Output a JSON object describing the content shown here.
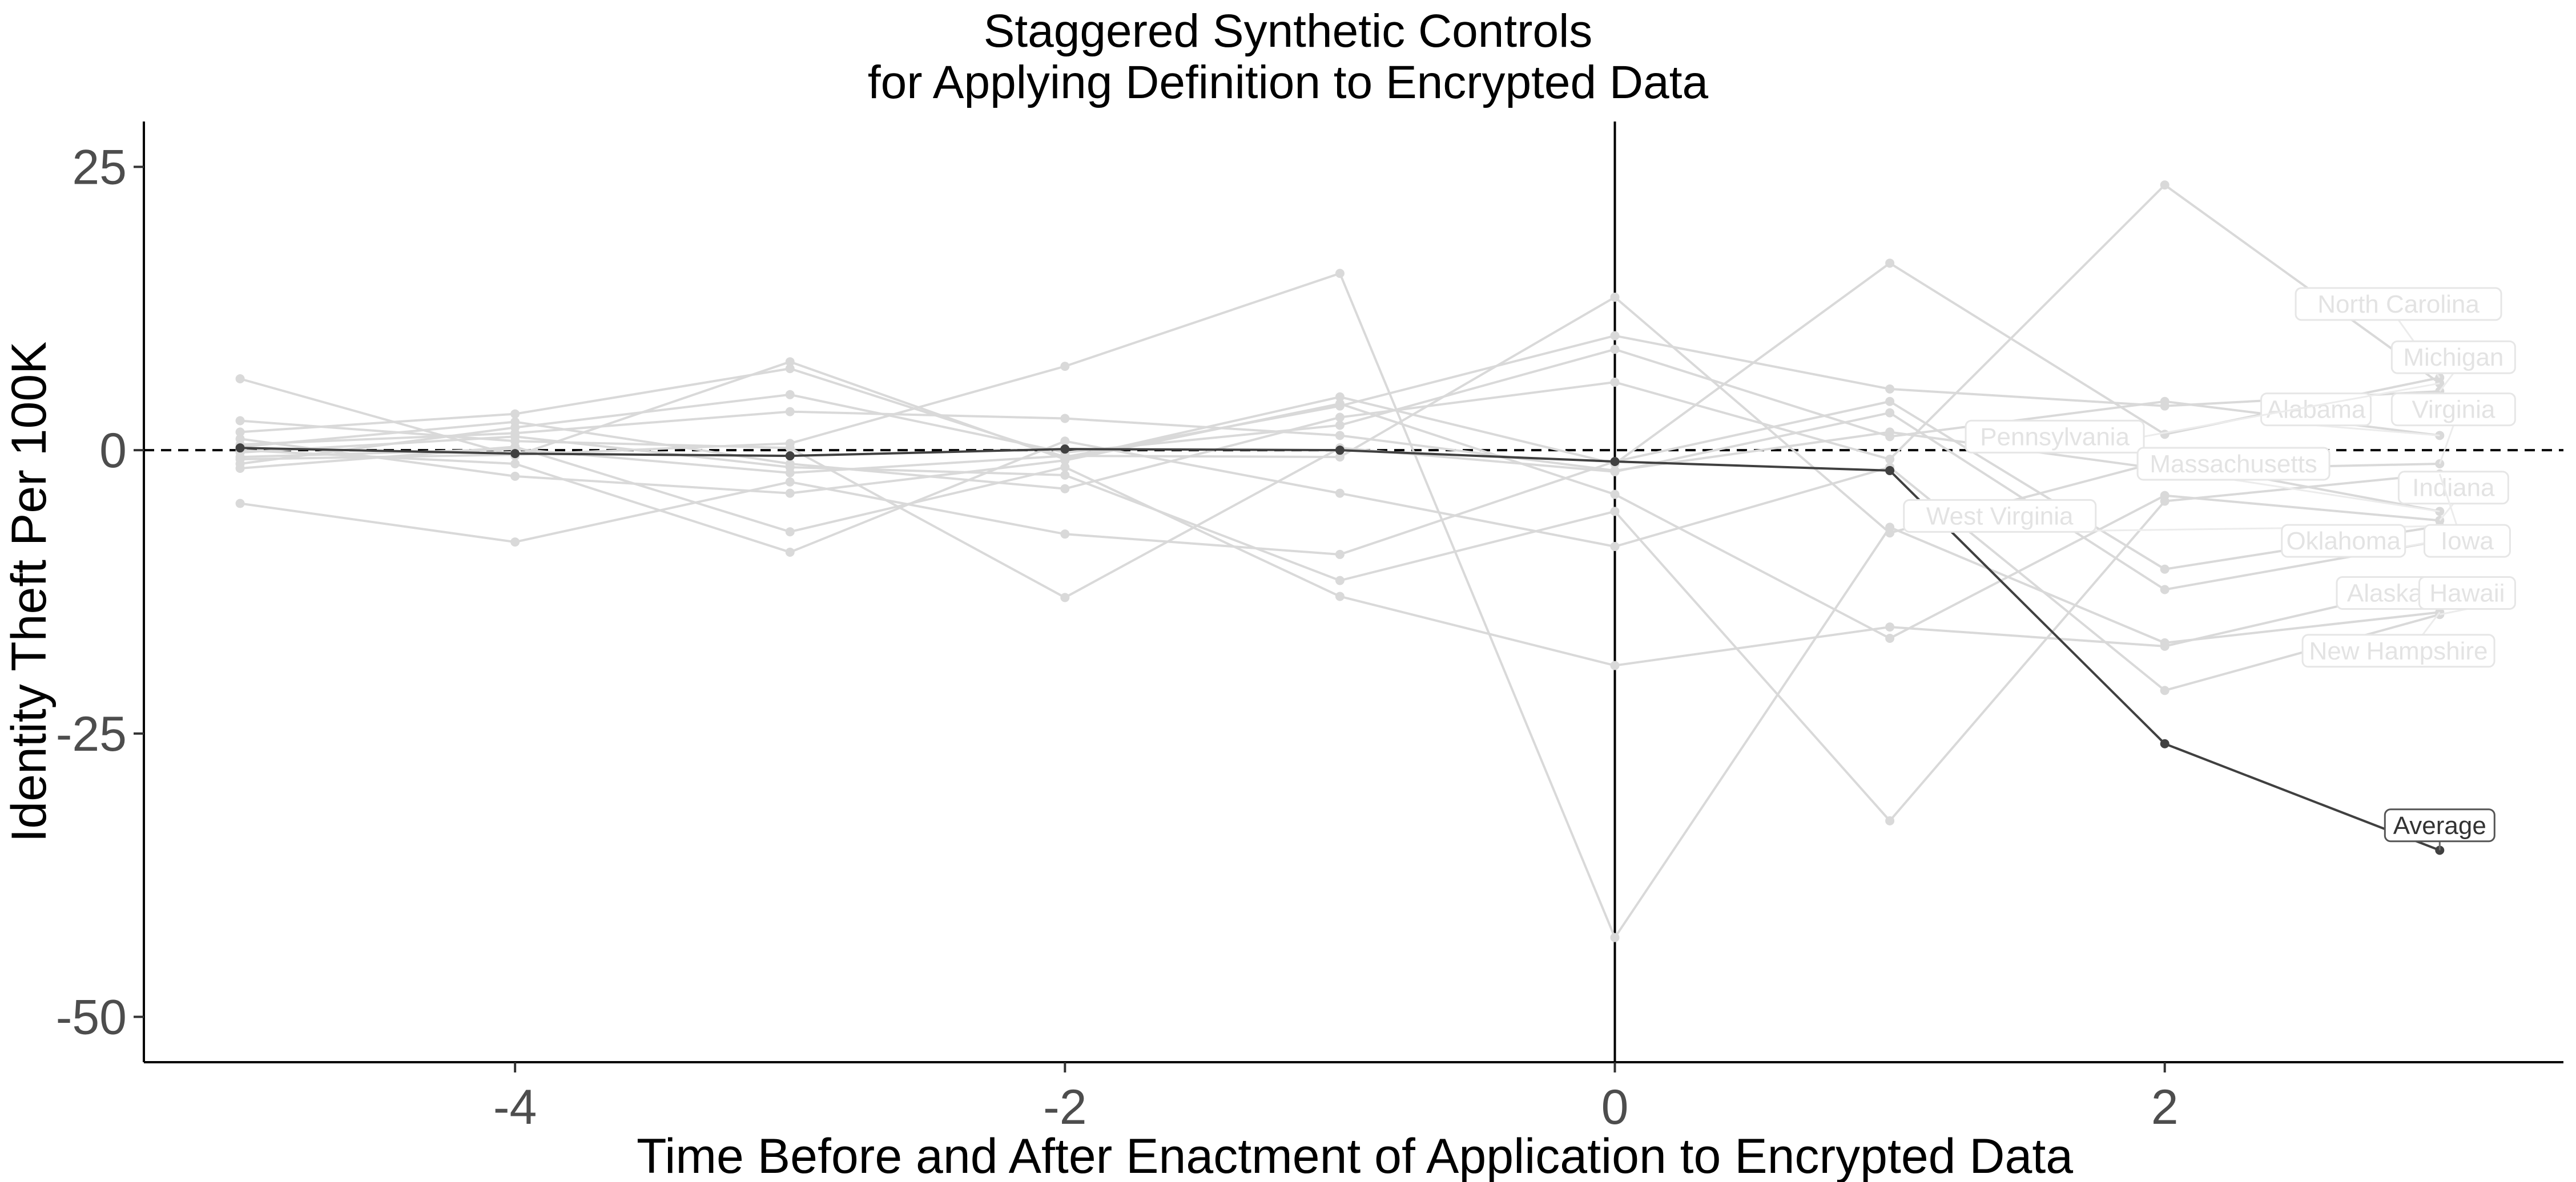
{
  "chart_data": {
    "type": "line",
    "title": "Staggered Synthetic Controls",
    "subtitle": "for Applying Definition to Encrypted Data",
    "xlabel": "Time Before and After Enactment of Application to Encrypted Data",
    "ylabel": "Identity Theft Per 100K",
    "xlim": [
      -5.35,
      3.45
    ],
    "ylim": [
      -54,
      29
    ],
    "x_ticks": [
      -4,
      -2,
      0,
      2
    ],
    "y_ticks": [
      25,
      0,
      -25,
      -50
    ],
    "x_tick_labels": [
      "-4",
      "-2",
      "0",
      "2"
    ],
    "y_tick_labels": [
      "25",
      "0",
      "-25",
      "-50"
    ],
    "reference_lines": {
      "horizontal_dashed_at": 0,
      "vertical_solid_at": 0
    },
    "grid": false,
    "legend": "none",
    "colors": {
      "states": "#d9d9d9",
      "state_labels": "#e3e3e3",
      "average": "#404040",
      "reference": "#000000"
    },
    "series": [
      {
        "name": "North Carolina",
        "x": [
          -5,
          -4,
          -3,
          -2,
          -1,
          0,
          1,
          2,
          3
        ],
        "y": [
          6.3,
          -0.5,
          7.8,
          -0.8,
          4.7,
          -1.2,
          16.5,
          1.4,
          6.4
        ]
      },
      {
        "name": "Michigan",
        "x": [
          -5,
          -4,
          -3,
          -2,
          -1,
          0,
          1,
          2,
          3
        ],
        "y": [
          1.6,
          3.2,
          7.2,
          -0.6,
          3.9,
          10.1,
          5.4,
          3.9,
          5.2
        ]
      },
      {
        "name": "Alabama",
        "x": [
          -5,
          -4,
          -3,
          -2,
          -1,
          0,
          1,
          2,
          3
        ],
        "y": [
          -1.2,
          2.0,
          4.9,
          -0.2,
          2.2,
          8.9,
          1.2,
          4.3,
          1.3
        ]
      },
      {
        "name": "Virginia",
        "x": [
          -5,
          -4,
          -3,
          -2,
          -1,
          0,
          1,
          2,
          3
        ],
        "y": [
          0.5,
          1.5,
          3.4,
          2.8,
          1.3,
          -1.8,
          1.6,
          -1.7,
          -1.2
        ]
      },
      {
        "name": "Pennsylvania",
        "x": [
          -5,
          -4,
          -3,
          -2,
          -1,
          0,
          1,
          2,
          3
        ],
        "y": [
          0.3,
          2.5,
          -1.2,
          -3.4,
          2.9,
          6.0,
          -0.8,
          23.4,
          5.9
        ]
      },
      {
        "name": "Massachusetts",
        "x": [
          -5,
          -4,
          -3,
          -2,
          -1,
          0,
          1,
          2,
          3
        ],
        "y": [
          -0.6,
          0.1,
          -2.0,
          -0.5,
          -0.6,
          13.5,
          -7.3,
          -0.9,
          -5.4
        ]
      },
      {
        "name": "Indiana",
        "x": [
          -5,
          -4,
          -3,
          -2,
          -1,
          0,
          1,
          2,
          3
        ],
        "y": [
          1.0,
          -2.3,
          -3.8,
          -0.9,
          4.1,
          -3.9,
          -16.6,
          -4.0,
          -6.2
        ]
      },
      {
        "name": "West Virginia",
        "x": [
          -5,
          -4,
          -3,
          -2,
          -1,
          0,
          1,
          2,
          3
        ],
        "y": [
          -4.7,
          -8.1,
          -2.8,
          -7.4,
          -9.2,
          -1.0,
          4.3,
          -10.5,
          -6.7
        ]
      },
      {
        "name": "Oklahoma",
        "x": [
          -5,
          -4,
          -3,
          -2,
          -1,
          0,
          1,
          2,
          3
        ],
        "y": [
          2.6,
          0.8,
          0.2,
          -13.0,
          0.2,
          -1.9,
          3.3,
          -12.3,
          -8.0
        ]
      },
      {
        "name": "Iowa",
        "x": [
          -5,
          -4,
          -3,
          -2,
          -1,
          0,
          1,
          2,
          3
        ],
        "y": [
          -0.2,
          1.2,
          -1.5,
          -2.2,
          -11.5,
          -5.4,
          -32.7,
          -4.5,
          -2.1
        ]
      },
      {
        "name": "Alaska",
        "x": [
          -5,
          -4,
          -3,
          -2,
          -1,
          0,
          1,
          2,
          3
        ],
        "y": [
          -1.6,
          0.3,
          -7.2,
          -1.5,
          -12.9,
          -19.0,
          -15.6,
          -17.3,
          -11.7
        ]
      },
      {
        "name": "Hawaii",
        "x": [
          -5,
          -4,
          -3,
          -2,
          -1,
          0,
          1,
          2,
          3
        ],
        "y": [
          0.0,
          -1.2,
          -9.0,
          0.8,
          -3.8,
          -8.5,
          -1.5,
          -21.2,
          -14.5
        ]
      },
      {
        "name": "New Hampshire",
        "x": [
          -5,
          -4,
          -3,
          -2,
          -1,
          0,
          1,
          2,
          3
        ],
        "y": [
          -0.8,
          -0.4,
          0.6,
          7.4,
          15.6,
          -43.0,
          -6.8,
          -17.0,
          -14.3
        ]
      },
      {
        "name": "Average",
        "x": [
          -5,
          -4,
          -3,
          -2,
          -1,
          0,
          1,
          2,
          3
        ],
        "y": [
          0.2,
          -0.3,
          -0.5,
          0.1,
          0.0,
          -1.0,
          -1.8,
          -25.9,
          -35.3
        ]
      }
    ],
    "labels": [
      "North Carolina",
      "Michigan",
      "Alabama",
      "Virginia",
      "Pennsylvania",
      "Massachusetts",
      "West Virginia",
      "Indiana",
      "Oklahoma",
      "Iowa",
      "Alaska",
      "Hawaii",
      "New Hampshire",
      "Average"
    ]
  }
}
